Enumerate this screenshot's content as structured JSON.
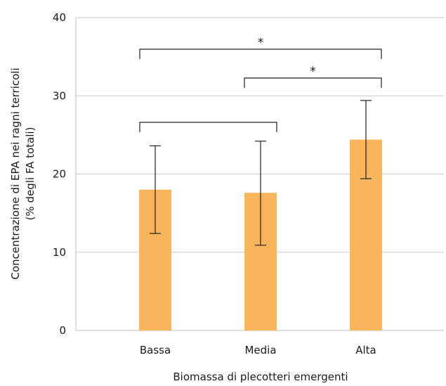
{
  "chart_data": {
    "type": "bar",
    "categories": [
      "Bassa",
      "Media",
      "Alta"
    ],
    "values": [
      18.0,
      17.6,
      24.4
    ],
    "error_low": [
      12.4,
      10.9,
      19.4
    ],
    "error_high": [
      23.6,
      24.2,
      29.4
    ],
    "xlabel": "Biomassa di plecotteri emergenti",
    "ylabel_lines": [
      "Concentrazione di EPA nei ragni terricoli",
      "(% degli FA totali)"
    ],
    "ylim": [
      0,
      40
    ],
    "yticks": [
      0,
      10,
      20,
      30,
      40
    ],
    "grid": true,
    "colors": {
      "bar": "#F8B55C",
      "grid": "#c8c8c8",
      "axis": "#bfbfbf",
      "text": "#1a1a1a"
    },
    "comparisons": [
      {
        "from": "Bassa",
        "to": "Alta",
        "label": "*"
      },
      {
        "from": "Media",
        "to": "Alta",
        "label": "*"
      },
      {
        "from": "Bassa",
        "to": "Media",
        "label": ""
      }
    ]
  }
}
